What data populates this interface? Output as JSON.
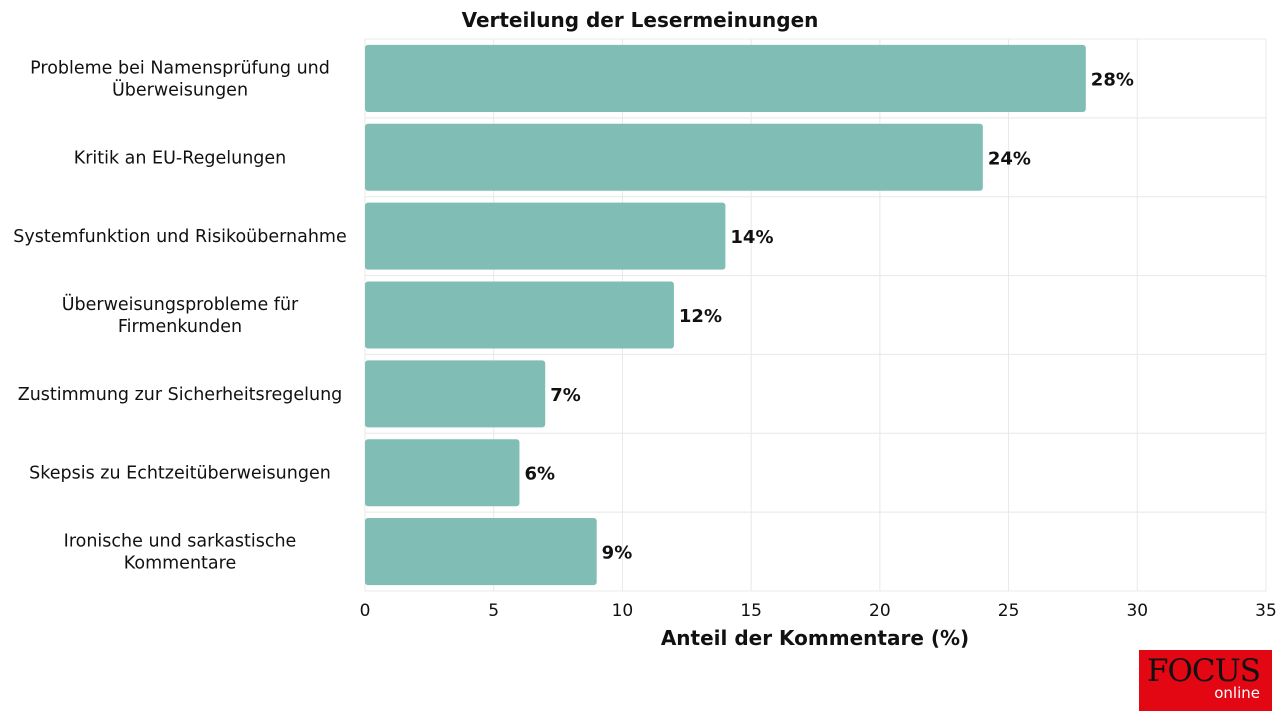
{
  "chart_data": {
    "type": "bar",
    "orientation": "horizontal",
    "title": "Verteilung der Lesermeinungen",
    "xlabel": "Anteil der Kommentare (%)",
    "ylabel": "",
    "xlim": [
      0,
      35
    ],
    "xticks": [
      "0",
      "5",
      "10",
      "15",
      "20",
      "25",
      "30",
      "35"
    ],
    "grid": true,
    "categories": [
      "Probleme bei Namensprüfung und Überweisungen",
      "Kritik an EU-Regelungen",
      "Systemfunktion und Risikoübernahme",
      "Überweisungsprobleme für Firmenkunden",
      "Zustimmung zur Sicherheitsregelung",
      "Skepsis zu Echtzeitüberweisungen",
      "Ironische und sarkastische Kommentare"
    ],
    "category_lines": [
      [
        "Probleme bei Namensprüfung und",
        "Überweisungen"
      ],
      [
        "Kritik an EU-Regelungen"
      ],
      [
        "Systemfunktion und Risikoübernahme"
      ],
      [
        "Überweisungsprobleme für",
        "Firmenkunden"
      ],
      [
        "Zustimmung zur Sicherheitsregelung"
      ],
      [
        "Skepsis zu Echtzeitüberweisungen"
      ],
      [
        "Ironische und sarkastische",
        "Kommentare"
      ]
    ],
    "values": [
      28,
      24,
      14,
      12,
      7,
      6,
      9
    ],
    "value_labels": [
      "28%",
      "24%",
      "14%",
      "12%",
      "7%",
      "6%",
      "9%"
    ],
    "bar_color": "#80bdb5"
  },
  "logo": {
    "brand": "FOCUS",
    "sub": "online",
    "color": "#e30613"
  }
}
